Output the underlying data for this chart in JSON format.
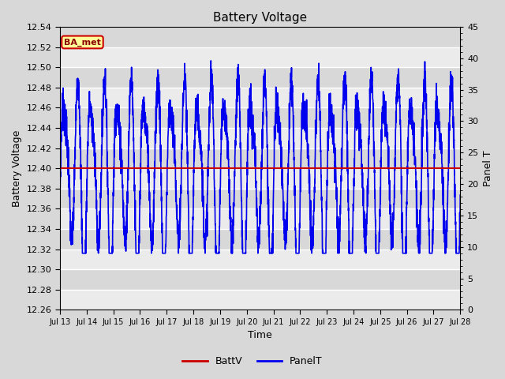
{
  "title": "Battery Voltage",
  "xlabel": "Time",
  "ylabel_left": "Battery Voltage",
  "ylabel_right": "Panel T",
  "ylim_left": [
    12.26,
    12.54
  ],
  "ylim_right": [
    0,
    45
  ],
  "x_tick_labels": [
    "Jul 13",
    "Jul 14",
    "Jul 15",
    "Jul 16",
    "Jul 17",
    "Jul 18",
    "Jul 19",
    "Jul 20",
    "Jul 21",
    "Jul 22",
    "Jul 23",
    "Jul 24",
    "Jul 25",
    "Jul 26",
    "Jul 27",
    "Jul 28"
  ],
  "batt_v_value": 12.4,
  "batt_color": "#cc0000",
  "panel_color": "#0000ee",
  "bg_color": "#d8d8d8",
  "plot_bg_color": "#d8d8d8",
  "annotation_text": "BA_met",
  "annotation_bg": "#ffff99",
  "annotation_border": "#cc0000",
  "legend_labels": [
    "BattV",
    "PanelT"
  ],
  "title_fontsize": 11,
  "axis_label_fontsize": 9,
  "tick_fontsize": 8,
  "legend_fontsize": 9,
  "left_ticks": [
    12.26,
    12.28,
    12.3,
    12.32,
    12.34,
    12.36,
    12.38,
    12.4,
    12.42,
    12.44,
    12.46,
    12.48,
    12.5,
    12.52,
    12.54
  ],
  "right_ticks": [
    0,
    5,
    10,
    15,
    20,
    25,
    30,
    35,
    40,
    45
  ]
}
